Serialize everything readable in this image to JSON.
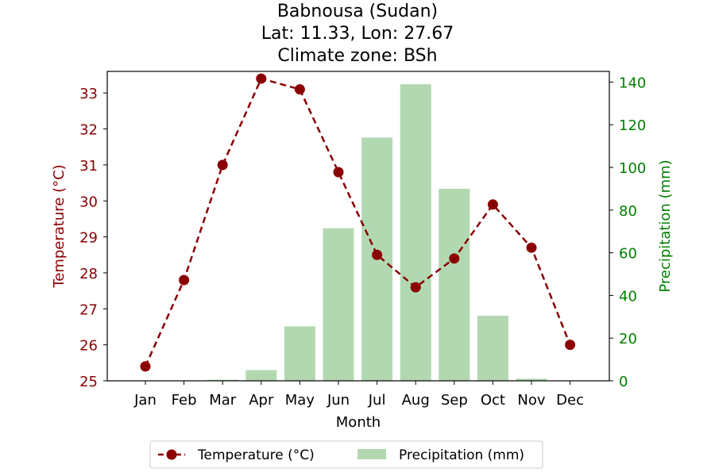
{
  "chart_data": {
    "type": "bar",
    "title": [
      "Babnousa (Sudan)",
      "Lat: 11.33, Lon: 27.67",
      "Climate zone: BSh"
    ],
    "xlabel": "Month",
    "ylabel_left": "Temperature (°C)",
    "ylabel_right": "Precipitation (mm)",
    "categories": [
      "Jan",
      "Feb",
      "Mar",
      "Apr",
      "May",
      "Jun",
      "Jul",
      "Aug",
      "Sep",
      "Oct",
      "Nov",
      "Dec"
    ],
    "series": [
      {
        "name": "Precipitation (mm)",
        "type": "bar",
        "axis": "right",
        "color": "#b2d8b2",
        "values": [
          0,
          0,
          0.5,
          5,
          25.5,
          71.5,
          114,
          139,
          90,
          30.5,
          1,
          0
        ]
      },
      {
        "name": "Temperature (°C)",
        "type": "line",
        "axis": "left",
        "color": "#8b0000",
        "line_style": "dashed",
        "marker": "circle",
        "values": [
          25.4,
          27.8,
          31.0,
          33.4,
          33.1,
          30.8,
          28.5,
          27.6,
          28.4,
          29.9,
          28.7,
          26.0
        ]
      }
    ],
    "ylim_left": [
      25,
      33.6
    ],
    "yticks_left": [
      25,
      26,
      27,
      28,
      29,
      30,
      31,
      32,
      33
    ],
    "ylim_right": [
      0,
      145
    ],
    "yticks_right": [
      0,
      20,
      40,
      60,
      80,
      100,
      120,
      140
    ],
    "grid": false,
    "legend_placement": "bottom-center",
    "left_axis_color": "#8b0000",
    "right_axis_color": "#008000"
  }
}
